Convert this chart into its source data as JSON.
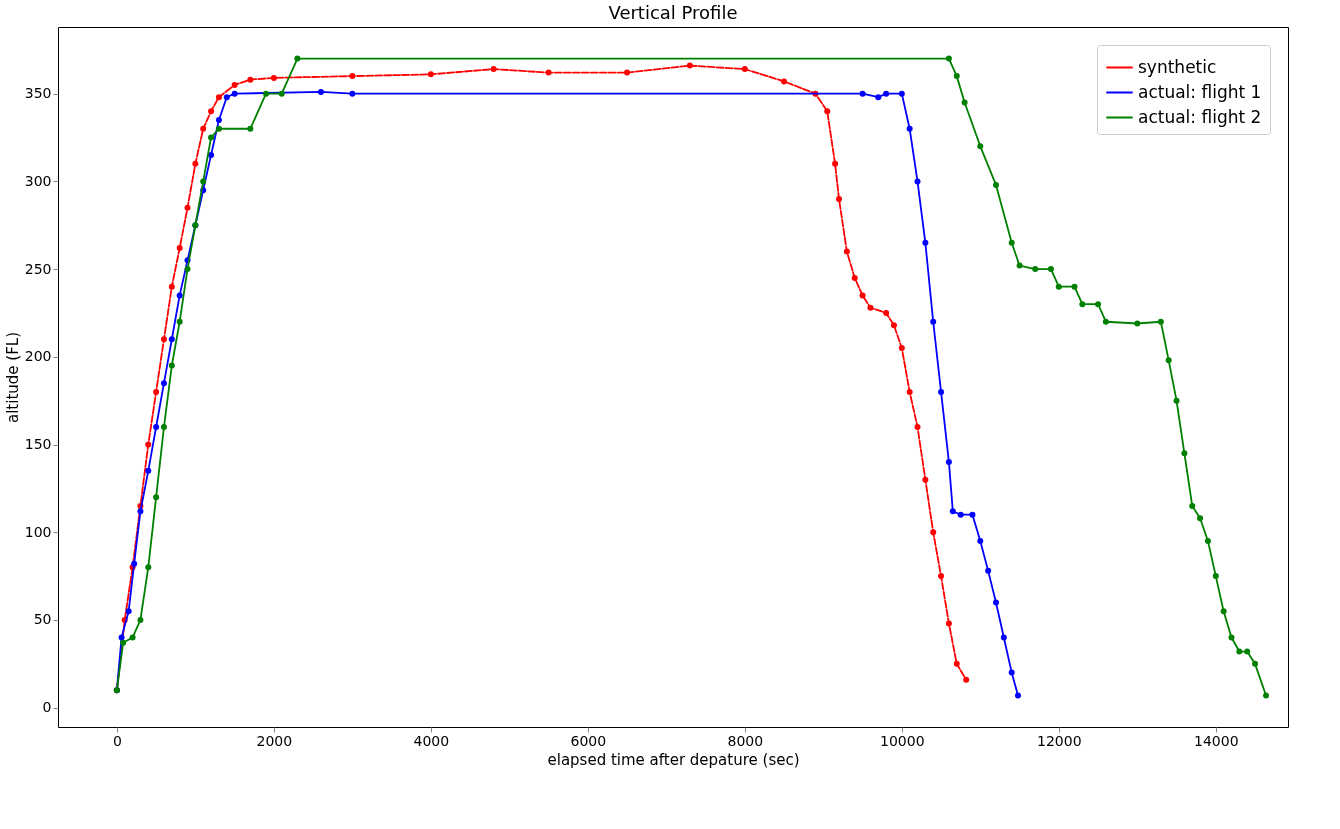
{
  "chart_data": {
    "type": "line",
    "title": "Vertical Profile",
    "xlabel": "elapsed time after depature (sec)",
    "ylabel": "altitude (FL)",
    "xlim": [
      -750,
      14920
    ],
    "ylim": [
      -11,
      388
    ],
    "xticks": [
      0,
      2000,
      4000,
      6000,
      8000,
      10000,
      12000,
      14000
    ],
    "yticks": [
      0,
      50,
      100,
      150,
      200,
      250,
      300,
      350
    ],
    "grid": false,
    "legend": "top right",
    "marker": "circle",
    "series": [
      {
        "name": "synthetic",
        "color": "#ff0000",
        "line_style": "dashed",
        "x": [
          0,
          100,
          200,
          300,
          400,
          500,
          600,
          700,
          800,
          900,
          1000,
          1100,
          1200,
          1300,
          1500,
          1700,
          2000,
          3000,
          4000,
          4800,
          5500,
          6500,
          7300,
          8000,
          8500,
          8900,
          9050,
          9150,
          9200,
          9300,
          9400,
          9500,
          9600,
          9800,
          9900,
          10000,
          10100,
          10200,
          10300,
          10400,
          10500,
          10600,
          10700,
          10820
        ],
        "values": [
          10,
          50,
          80,
          115,
          150,
          180,
          210,
          240,
          262,
          285,
          310,
          330,
          340,
          348,
          355,
          358,
          359,
          360,
          361,
          364,
          362,
          362,
          366,
          364,
          357,
          350,
          340,
          310,
          290,
          260,
          245,
          235,
          228,
          225,
          218,
          205,
          180,
          160,
          130,
          100,
          75,
          48,
          25,
          16
        ]
      },
      {
        "name": "actual: flight 1",
        "color": "#0000ff",
        "line_style": "solid",
        "x": [
          0,
          60,
          150,
          220,
          300,
          400,
          500,
          600,
          700,
          800,
          900,
          1000,
          1100,
          1200,
          1300,
          1400,
          1500,
          2600,
          3000,
          9500,
          9700,
          9800,
          10000,
          10100,
          10200,
          10300,
          10400,
          10500,
          10600,
          10650,
          10750,
          10900,
          11000,
          11100,
          11200,
          11300,
          11400,
          11480
        ],
        "values": [
          10,
          40,
          55,
          82,
          112,
          135,
          160,
          185,
          210,
          235,
          255,
          275,
          295,
          315,
          335,
          348,
          350,
          351,
          350,
          350,
          348,
          350,
          350,
          330,
          300,
          265,
          220,
          180,
          140,
          112,
          110,
          110,
          95,
          78,
          60,
          40,
          20,
          7
        ]
      },
      {
        "name": "actual: flight 2",
        "color": "#008000",
        "line_style": "solid",
        "x": [
          0,
          80,
          200,
          300,
          400,
          500,
          600,
          700,
          800,
          900,
          1000,
          1100,
          1200,
          1300,
          1700,
          1900,
          2100,
          2300,
          10600,
          10700,
          10800,
          11000,
          11200,
          11400,
          11500,
          11700,
          11900,
          12000,
          12200,
          12300,
          12500,
          12600,
          13000,
          13300,
          13400,
          13500,
          13600,
          13700,
          13800,
          13900,
          14000,
          14100,
          14200,
          14300,
          14400,
          14500,
          14640
        ],
        "values": [
          10,
          37,
          40,
          50,
          80,
          120,
          160,
          195,
          220,
          250,
          275,
          300,
          325,
          330,
          330,
          350,
          350,
          370,
          370,
          360,
          345,
          320,
          298,
          265,
          252,
          250,
          250,
          240,
          240,
          230,
          230,
          220,
          219,
          220,
          198,
          175,
          145,
          115,
          108,
          95,
          75,
          55,
          40,
          32,
          32,
          25,
          7
        ]
      }
    ]
  }
}
